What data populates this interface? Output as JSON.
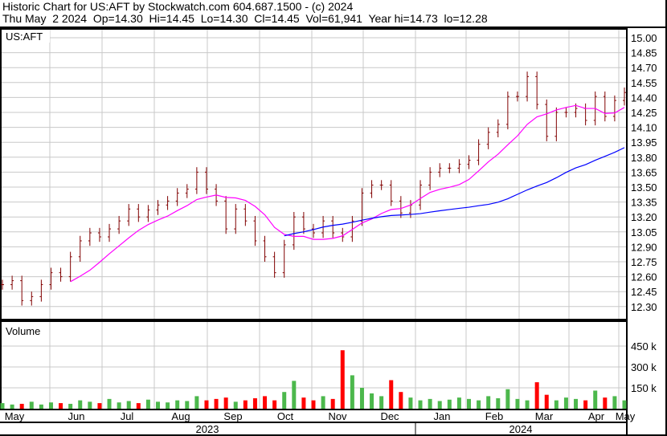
{
  "header": {
    "title": "Historic Chart for US:AFT by Stockwatch.com 604.687.1500 - (c) 2024",
    "quote": "Thu May  2 2024  Op=14.30  Hi=14.45  Lo=14.30  Cl=14.45  Vol=61,941  Year hi=14.73  lo=12.28"
  },
  "chart_data": {
    "type": "ohlc",
    "symbol_label": "US:AFT",
    "volume_label": "Volume",
    "price_ticks": [
      "15.00",
      "14.85",
      "14.70",
      "14.55",
      "14.40",
      "14.25",
      "14.10",
      "13.95",
      "13.80",
      "13.65",
      "13.50",
      "13.35",
      "13.20",
      "13.05",
      "12.90",
      "12.75",
      "12.60",
      "12.45",
      "12.30"
    ],
    "ylim": [
      12.2,
      15.07
    ],
    "volume_ticks": [
      "450 k",
      "300 k",
      "150 k"
    ],
    "volume_tick_values": [
      450,
      300,
      150
    ],
    "volume_unit": "k",
    "months": [
      "May",
      "Jun",
      "Jul",
      "Aug",
      "Sep",
      "Oct",
      "Nov",
      "Dec",
      "Jan",
      "Feb",
      "Mar",
      "Apr",
      "May"
    ],
    "years": [
      "2023",
      "2024"
    ],
    "closes": [
      12.52,
      12.56,
      12.36,
      12.4,
      12.52,
      12.64,
      12.6,
      12.8,
      12.96,
      13.04,
      13.0,
      13.08,
      13.16,
      13.28,
      13.2,
      13.27,
      13.32,
      13.36,
      13.44,
      13.48,
      13.65,
      13.48,
      13.36,
      13.08,
      13.28,
      13.16,
      12.96,
      12.8,
      12.64,
      12.92,
      13.2,
      13.08,
      13.04,
      13.16,
      13.04,
      13.0,
      13.16,
      13.44,
      13.52,
      13.52,
      13.36,
      13.24,
      13.32,
      13.52,
      13.65,
      13.69,
      13.69,
      13.73,
      13.77,
      13.93,
      14.05,
      14.13,
      14.41,
      14.41,
      14.61,
      14.33,
      14.01,
      14.25,
      14.25,
      14.29,
      14.17,
      14.41,
      14.21,
      14.37,
      14.45
    ],
    "volumes": [
      40,
      30,
      35,
      50,
      30,
      45,
      40,
      35,
      60,
      50,
      40,
      70,
      45,
      55,
      40,
      65,
      50,
      45,
      60,
      55,
      90,
      60,
      70,
      80,
      50,
      60,
      75,
      90,
      60,
      120,
      200,
      80,
      60,
      90,
      70,
      420,
      240,
      150,
      110,
      90,
      205,
      120,
      80,
      60,
      70,
      55,
      65,
      80,
      70,
      60,
      90,
      75,
      140,
      70,
      60,
      190,
      100,
      60,
      80,
      70,
      60,
      130,
      80,
      90,
      60
    ],
    "moving_averages": [
      {
        "color": "#ff00ff"
      },
      {
        "color": "#0000ff"
      }
    ],
    "colors": {
      "up": "#4cb84c",
      "down": "#ff0000",
      "bar": "#800000",
      "grid": "#c8c8c8"
    }
  }
}
